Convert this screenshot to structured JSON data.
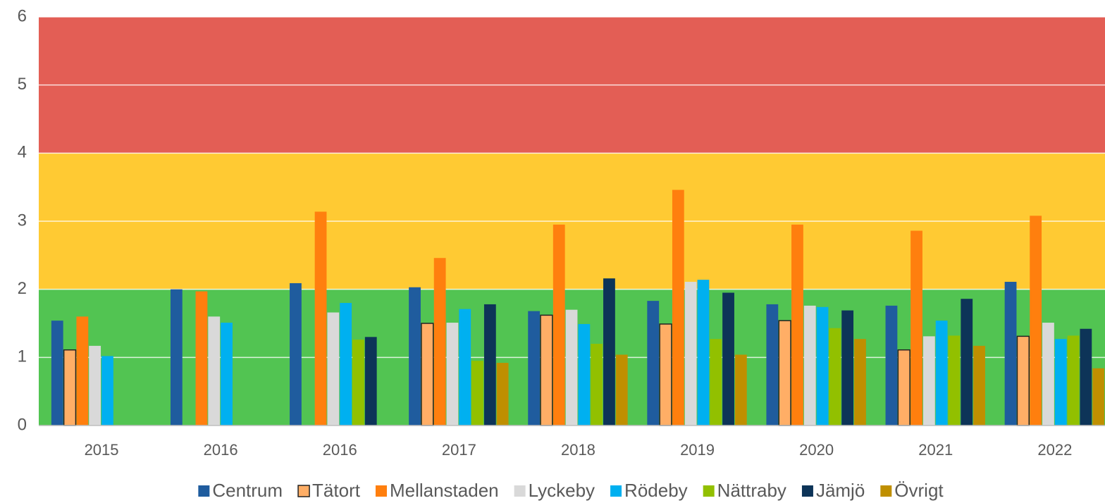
{
  "chart_data": {
    "type": "bar",
    "categories": [
      "2015",
      "2016",
      "2016",
      "2017",
      "2018",
      "2019",
      "2020",
      "2021",
      "2022"
    ],
    "series": [
      {
        "name": "Centrum",
        "color": "#1f5c9e",
        "values": [
          1.54,
          2.0,
          2.09,
          2.03,
          1.68,
          1.83,
          1.78,
          1.76,
          2.11
        ]
      },
      {
        "name": "Tätort",
        "color": "#ffae66",
        "outline": "#222222",
        "values": [
          1.11,
          null,
          null,
          1.5,
          1.62,
          1.49,
          1.54,
          1.11,
          1.31
        ]
      },
      {
        "name": "Mellanstaden",
        "color": "#ff7f0e",
        "values": [
          1.6,
          1.97,
          3.14,
          2.46,
          2.95,
          3.46,
          2.95,
          2.86,
          3.08
        ]
      },
      {
        "name": "Lyckeby",
        "color": "#d9d9d9",
        "values": [
          1.17,
          1.6,
          1.66,
          1.51,
          1.7,
          2.11,
          1.76,
          1.31,
          1.51
        ]
      },
      {
        "name": "Rödeby",
        "color": "#00b0f0",
        "values": [
          1.02,
          1.51,
          1.8,
          1.71,
          1.49,
          2.14,
          1.74,
          1.54,
          1.27
        ]
      },
      {
        "name": "Nättraby",
        "color": "#92c000",
        "values": [
          null,
          null,
          1.26,
          0.95,
          1.2,
          1.27,
          1.43,
          1.32,
          1.32
        ]
      },
      {
        "name": "Jämjö",
        "color": "#0d3458",
        "values": [
          null,
          null,
          1.3,
          1.78,
          2.16,
          1.95,
          1.69,
          1.86,
          1.42
        ]
      },
      {
        "name": "Övrigt",
        "color": "#bf8f00",
        "values": [
          null,
          null,
          null,
          0.92,
          1.04,
          1.04,
          1.27,
          1.17,
          0.84
        ]
      }
    ],
    "bands": [
      {
        "from": 0,
        "to": 2,
        "color": "#52c452"
      },
      {
        "from": 2,
        "to": 4,
        "color": "#ffca33"
      },
      {
        "from": 4,
        "to": 6,
        "color": "#e35e55"
      }
    ],
    "ylim": [
      0,
      6
    ],
    "yticks": [
      0,
      1,
      2,
      3,
      4,
      5,
      6
    ],
    "grid": true,
    "legend": "bottom"
  }
}
